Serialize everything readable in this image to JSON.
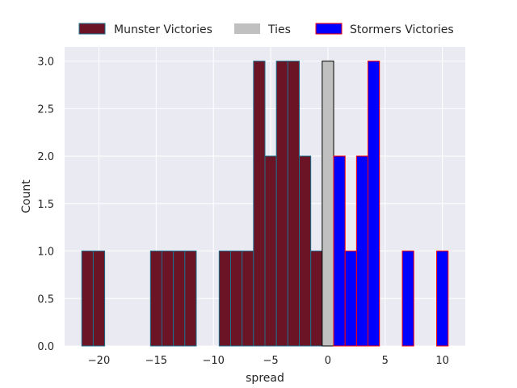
{
  "chart_data": {
    "type": "bar",
    "title": "",
    "xlabel": "spread",
    "ylabel": "Count",
    "xlim": [
      -23,
      12
    ],
    "ylim": [
      0,
      3.15
    ],
    "bin_width": 1,
    "xticks": [
      -20,
      -15,
      -10,
      -5,
      0,
      5,
      10
    ],
    "xtick_labels": [
      "−20",
      "−15",
      "−10",
      "−5",
      "0",
      "5",
      "10"
    ],
    "yticks": [
      0,
      0.5,
      1,
      1.5,
      2,
      2.5,
      3
    ],
    "ytick_labels": [
      "0.0",
      "0.5",
      "1.0",
      "1.5",
      "2.0",
      "2.5",
      "3.0"
    ],
    "grid": true,
    "legend_position": "top, outside plot",
    "series": [
      {
        "name": "Munster Victories",
        "fill": "#6b1426",
        "edge": "#1f6f8b",
        "bins": [
          {
            "left": -21.5,
            "count": 1
          },
          {
            "left": -20.5,
            "count": 1
          },
          {
            "left": -15.5,
            "count": 1
          },
          {
            "left": -14.5,
            "count": 1
          },
          {
            "left": -13.5,
            "count": 1
          },
          {
            "left": -12.5,
            "count": 1
          },
          {
            "left": -9.5,
            "count": 1
          },
          {
            "left": -8.5,
            "count": 1
          },
          {
            "left": -7.5,
            "count": 1
          },
          {
            "left": -6.5,
            "count": 3
          },
          {
            "left": -5.5,
            "count": 2
          },
          {
            "left": -4.5,
            "count": 3
          },
          {
            "left": -3.5,
            "count": 3
          },
          {
            "left": -2.5,
            "count": 2
          },
          {
            "left": -1.5,
            "count": 1
          }
        ]
      },
      {
        "name": "Ties",
        "fill": "#c0c0c0",
        "edge": "#000000",
        "bins": [
          {
            "left": -0.5,
            "count": 3
          }
        ]
      },
      {
        "name": "Stormers Victories",
        "fill": "#0000ff",
        "edge": "#ff0000",
        "bins": [
          {
            "left": 0.5,
            "count": 2
          },
          {
            "left": 1.5,
            "count": 1
          },
          {
            "left": 2.5,
            "count": 2
          },
          {
            "left": 3.5,
            "count": 3
          },
          {
            "left": 6.5,
            "count": 1
          },
          {
            "left": 9.5,
            "count": 1
          }
        ]
      }
    ]
  }
}
